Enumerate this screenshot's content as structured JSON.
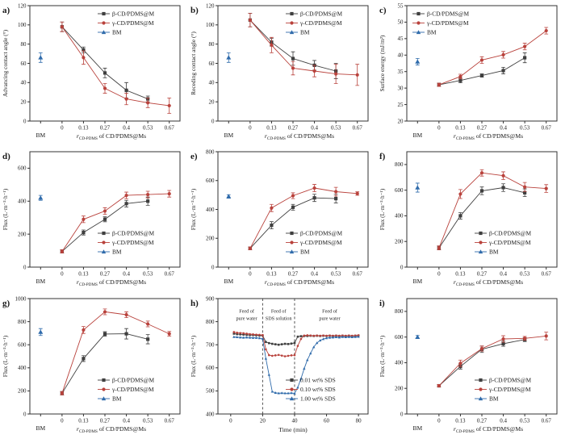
{
  "figure": {
    "panel_labels": [
      "a)",
      "b)",
      "c)",
      "d)",
      "e)",
      "f)",
      "g)",
      "h)",
      "i)"
    ],
    "colors": {
      "beta": "#3f3f3f",
      "gamma": "#b9423c",
      "bm": "#2f6bab",
      "bm_label": "#4f81a8",
      "frame": "#333333"
    },
    "xlabel": {
      "prefix": "r",
      "subscript": "CD-PDMS",
      "rest": " of CD/PDMS@Ms"
    },
    "bm_tick_label": "BM"
  },
  "chart_data": [
    {
      "id": "a",
      "type": "line-category",
      "ylabel": "Advancing contact angle (°)",
      "ylim": [
        0,
        120
      ],
      "yticks": [
        0,
        20,
        40,
        60,
        80,
        100,
        120
      ],
      "categories": [
        "0",
        "0.13",
        "0.27",
        "0.4",
        "0.53",
        "0.67"
      ],
      "bm": {
        "label": "BM",
        "value": 66,
        "err": 5
      },
      "series": [
        {
          "name": "β-CD/PDMS@M",
          "marker": "square",
          "color_key": "beta",
          "values": [
            98,
            74,
            50,
            32,
            23,
            null
          ],
          "errors": [
            5,
            3,
            5,
            8,
            3,
            null
          ]
        },
        {
          "name": "γ-CD/PDMS@M",
          "marker": "circle",
          "color_key": "gamma",
          "values": [
            98,
            66,
            34,
            23,
            19,
            16
          ],
          "errors": [
            5,
            7,
            5,
            6,
            5,
            8
          ]
        }
      ],
      "legend_pos": "top-right"
    },
    {
      "id": "b",
      "type": "line-category",
      "ylabel": "Receding contact angle (°)",
      "ylim": [
        0,
        120
      ],
      "yticks": [
        0,
        20,
        40,
        60,
        80,
        100,
        120
      ],
      "categories": [
        "0",
        "0.13",
        "0.27",
        "0.4",
        "0.53",
        "0.67"
      ],
      "bm": {
        "label": "BM",
        "value": 66,
        "err": 5
      },
      "series": [
        {
          "name": "β-CD/PDMS@M",
          "marker": "square",
          "color_key": "beta",
          "values": [
            105,
            82,
            65,
            58,
            52,
            null
          ],
          "errors": [
            7,
            4,
            7,
            5,
            8,
            null
          ]
        },
        {
          "name": "γ-CD/PDMS@M",
          "marker": "circle",
          "color_key": "gamma",
          "values": [
            105,
            79,
            55,
            52,
            49,
            48
          ],
          "errors": [
            7,
            8,
            7,
            6,
            10,
            11
          ]
        }
      ],
      "legend_pos": "top-right"
    },
    {
      "id": "c",
      "type": "line-category",
      "ylabel": "Surface energy (mJ/m²)",
      "ylim": [
        20,
        55
      ],
      "yticks": [
        20,
        25,
        30,
        35,
        40,
        45,
        50,
        55
      ],
      "categories": [
        "0",
        "0.13",
        "0.27",
        "0.4",
        "0.53",
        "0.67"
      ],
      "bm": {
        "label": "BM",
        "value": 38,
        "err": 1
      },
      "series": [
        {
          "name": "β-CD/PDMS@M",
          "marker": "square",
          "color_key": "beta",
          "values": [
            31,
            32.3,
            33.8,
            35.3,
            39.2,
            null
          ],
          "errors": [
            0.5,
            0.7,
            0.5,
            1,
            1.5,
            null
          ]
        },
        {
          "name": "γ-CD/PDMS@M",
          "marker": "circle",
          "color_key": "gamma",
          "values": [
            31,
            33.5,
            38.5,
            40.1,
            42.6,
            47.4
          ],
          "errors": [
            0.5,
            0.7,
            1,
            1,
            1,
            1
          ]
        }
      ],
      "legend_pos": "top-left"
    },
    {
      "id": "d",
      "type": "line-category",
      "ylabel": "Flux (L·m⁻²·h⁻¹)",
      "ylim": [
        0,
        700
      ],
      "yticks": [
        0,
        200,
        400,
        600
      ],
      "categories": [
        "0",
        "0.13",
        "0.27",
        "0.4",
        "0.53",
        "0.67"
      ],
      "bm": {
        "label": "BM",
        "value": 420,
        "err": 15
      },
      "series": [
        {
          "name": "β-CD/PDMS@M",
          "marker": "square",
          "color_key": "beta",
          "values": [
            95,
            210,
            290,
            385,
            400,
            null
          ],
          "errors": [
            10,
            15,
            15,
            20,
            25,
            null
          ]
        },
        {
          "name": "γ-CD/PDMS@M",
          "marker": "circle",
          "color_key": "gamma",
          "values": [
            95,
            290,
            340,
            435,
            440,
            445
          ],
          "errors": [
            10,
            20,
            20,
            20,
            20,
            20
          ]
        }
      ],
      "legend_pos": "bottom-right"
    },
    {
      "id": "e",
      "type": "line-category",
      "ylabel": "Flux (L·m⁻²·h⁻¹)",
      "ylim": [
        0,
        800
      ],
      "yticks": [
        0,
        200,
        400,
        600,
        800
      ],
      "categories": [
        "0",
        "0.13",
        "0.27",
        "0.4",
        "0.53",
        "0.67"
      ],
      "bm": {
        "label": "BM",
        "value": 490,
        "err": 12
      },
      "series": [
        {
          "name": "β-CD/PDMS@M",
          "marker": "square",
          "color_key": "beta",
          "values": [
            130,
            290,
            415,
            480,
            475,
            null
          ],
          "errors": [
            10,
            25,
            20,
            25,
            30,
            null
          ]
        },
        {
          "name": "γ-CD/PDMS@M",
          "marker": "circle",
          "color_key": "gamma",
          "values": [
            130,
            410,
            495,
            548,
            523,
            510
          ],
          "errors": [
            10,
            25,
            20,
            25,
            30,
            12
          ]
        }
      ],
      "legend_pos": "bottom-right"
    },
    {
      "id": "f",
      "type": "line-category",
      "ylabel": "Flux (L·m⁻²·h⁻¹)",
      "ylim": [
        0,
        900
      ],
      "yticks": [
        0,
        200,
        400,
        600,
        800
      ],
      "categories": [
        "0",
        "0.13",
        "0.27",
        "0.4",
        "0.53",
        "0.67"
      ],
      "bm": {
        "label": "BM",
        "value": 620,
        "err": 35
      },
      "series": [
        {
          "name": "β-CD/PDMS@M",
          "marker": "square",
          "color_key": "beta",
          "values": [
            150,
            400,
            595,
            620,
            580,
            null
          ],
          "errors": [
            15,
            25,
            30,
            30,
            30,
            null
          ]
        },
        {
          "name": "γ-CD/PDMS@M",
          "marker": "circle",
          "color_key": "gamma",
          "values": [
            150,
            570,
            735,
            713,
            625,
            613
          ],
          "errors": [
            15,
            35,
            25,
            30,
            35,
            30
          ]
        }
      ],
      "legend_pos": "bottom-right"
    },
    {
      "id": "g",
      "type": "line-category",
      "ylabel": "Flux (L·m⁻²·h⁻¹)",
      "ylim": [
        0,
        1000
      ],
      "yticks": [
        0,
        200,
        400,
        600,
        800,
        1000
      ],
      "categories": [
        "0",
        "0.13",
        "0.27",
        "0.4",
        "0.53",
        "0.67"
      ],
      "bm": {
        "label": "BM",
        "value": 710,
        "err": 30
      },
      "series": [
        {
          "name": "β-CD/PDMS@M",
          "marker": "square",
          "color_key": "beta",
          "values": [
            180,
            480,
            693,
            695,
            648,
            null
          ],
          "errors": [
            15,
            25,
            20,
            45,
            40,
            null
          ]
        },
        {
          "name": "γ-CD/PDMS@M",
          "marker": "circle",
          "color_key": "gamma",
          "values": [
            180,
            728,
            885,
            860,
            780,
            695
          ],
          "errors": [
            15,
            30,
            25,
            25,
            25,
            20
          ]
        }
      ],
      "legend_pos": "bottom-right"
    },
    {
      "id": "h",
      "type": "time-line",
      "ylabel": "Flux (L·m⁻²·h⁻¹)",
      "xlabel": "Time (min)",
      "ylim": [
        400,
        900
      ],
      "yticks": [
        400,
        500,
        600,
        700,
        800,
        900
      ],
      "xlim": [
        -8,
        86
      ],
      "xticks": [
        0,
        20,
        40,
        60,
        80
      ],
      "vlines": [
        20,
        40
      ],
      "annotations": [
        {
          "x": 10,
          "y": 838,
          "lines": [
            "Feed of",
            "pure water"
          ]
        },
        {
          "x": 30,
          "y": 838,
          "lines": [
            "Feed of",
            "SDS solution"
          ]
        },
        {
          "x": 62,
          "y": 838,
          "lines": [
            "Feed of",
            "pure water"
          ]
        }
      ],
      "series": [
        {
          "name": "0.01 wt% SDS",
          "marker": "square",
          "color_key": "beta",
          "x": [
            2,
            4,
            6,
            8,
            10,
            12,
            14,
            16,
            18,
            20,
            22,
            24,
            26,
            28,
            30,
            32,
            34,
            36,
            38,
            40,
            42,
            44,
            46,
            48,
            50,
            52,
            54,
            56,
            58,
            60,
            62,
            64,
            66,
            68,
            70,
            72,
            74,
            76,
            78,
            80
          ],
          "y": [
            748,
            746,
            745,
            744,
            743,
            742,
            742,
            741,
            740,
            740,
            712,
            707,
            704,
            702,
            700,
            702,
            704,
            703,
            705,
            708,
            735,
            737,
            738,
            738,
            739,
            738,
            739,
            738,
            739,
            738,
            739,
            738,
            739,
            738,
            739,
            738,
            739,
            738,
            739,
            740
          ]
        },
        {
          "name": "0.10 wt% SDS",
          "marker": "circle",
          "color_key": "gamma",
          "x": [
            2,
            4,
            6,
            8,
            10,
            12,
            14,
            16,
            18,
            20,
            22,
            24,
            26,
            28,
            30,
            32,
            34,
            36,
            38,
            40,
            42,
            44,
            46,
            48,
            50,
            52,
            54,
            56,
            58,
            60,
            62,
            64,
            66,
            68,
            70,
            72,
            74,
            76,
            78,
            80
          ],
          "y": [
            755,
            752,
            751,
            750,
            748,
            746,
            745,
            744,
            743,
            742,
            680,
            655,
            652,
            654,
            656,
            653,
            650,
            652,
            654,
            655,
            695,
            725,
            740,
            741,
            740,
            739,
            740,
            739,
            740,
            739,
            740,
            739,
            740,
            739,
            740,
            739,
            740,
            739,
            740,
            741
          ]
        },
        {
          "name": "1.00 wt% SDS",
          "marker": "triangle",
          "color_key": "bm",
          "x": [
            2,
            4,
            6,
            8,
            10,
            12,
            14,
            16,
            18,
            20,
            22,
            24,
            26,
            28,
            30,
            32,
            34,
            36,
            38,
            40,
            42,
            44,
            46,
            48,
            50,
            52,
            54,
            56,
            58,
            60,
            62,
            64,
            66,
            68,
            70,
            72,
            74,
            76,
            78,
            80
          ],
          "y": [
            734,
            733,
            732,
            731,
            732,
            731,
            730,
            730,
            729,
            726,
            640,
            570,
            497,
            492,
            490,
            491,
            490,
            490,
            491,
            489,
            515,
            553,
            597,
            634,
            663,
            690,
            708,
            719,
            725,
            729,
            731,
            732,
            733,
            732,
            734,
            733,
            734,
            733,
            734,
            735
          ]
        }
      ],
      "legend_pos": "bottom-right"
    },
    {
      "id": "i",
      "type": "line-category",
      "ylabel": "Flux (L·m⁻²·h⁻¹)",
      "ylim": [
        0,
        900
      ],
      "yticks": [
        0,
        200,
        400,
        600,
        800
      ],
      "categories": [
        "0",
        "0.13",
        "0.27",
        "0.4",
        "0.53",
        "0.67"
      ],
      "bm": {
        "label": "BM",
        "value": 600,
        "err": 12
      },
      "series": [
        {
          "name": "β-CD/PDMS@M",
          "marker": "square",
          "color_key": "beta",
          "values": [
            220,
            370,
            505,
            548,
            580,
            null
          ],
          "errors": [
            10,
            20,
            25,
            20,
            15,
            null
          ]
        },
        {
          "name": "γ-CD/PDMS@M",
          "marker": "circle",
          "color_key": "gamma",
          "values": [
            220,
            395,
            510,
            585,
            590,
            608
          ],
          "errors": [
            10,
            25,
            20,
            25,
            15,
            30
          ]
        }
      ],
      "legend_pos": "bottom-right"
    }
  ]
}
